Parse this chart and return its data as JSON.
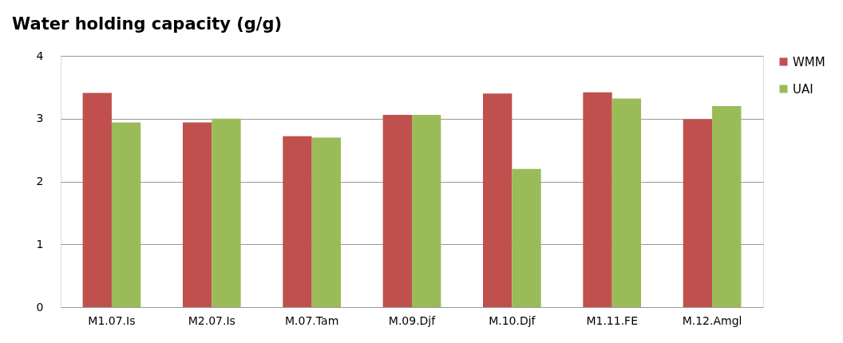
{
  "chart_data": {
    "type": "bar",
    "title": "Water holding capacity (g/g)",
    "categories": [
      "M1.07.Is",
      "M2.07.Is",
      "M.07.Tam",
      "M.09.Djf",
      "M.10.Djf",
      "M1.11.FE",
      "M.12.Amgl"
    ],
    "series": [
      {
        "name": "WMM",
        "color": "#c0504d",
        "values": [
          3.41,
          2.94,
          2.72,
          3.06,
          3.4,
          3.42,
          2.99
        ]
      },
      {
        "name": "UAI",
        "color": "#9bbb59",
        "values": [
          2.94,
          3.0,
          2.7,
          3.06,
          2.2,
          3.32,
          3.2
        ]
      }
    ],
    "ylim": [
      0,
      4
    ],
    "yticks": [
      0,
      1,
      2,
      3,
      4
    ],
    "grid": "y",
    "legend": "right"
  }
}
